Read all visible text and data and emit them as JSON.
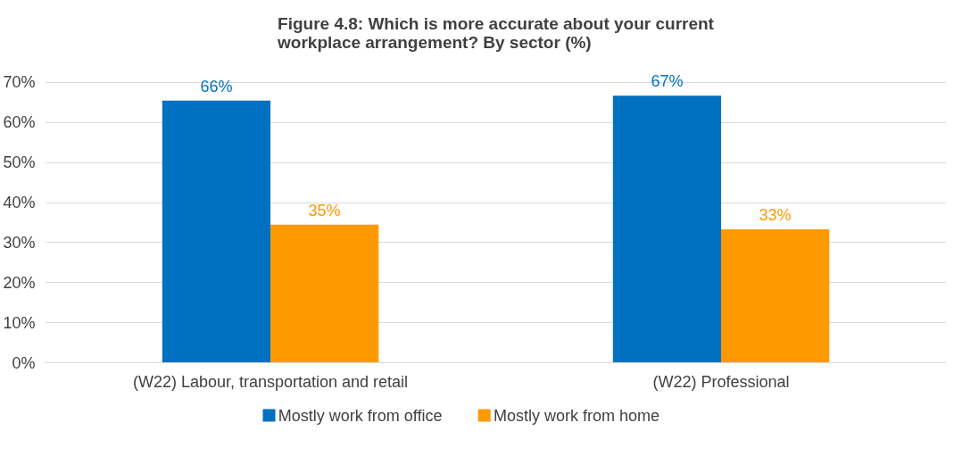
{
  "chart_data": {
    "type": "bar",
    "title": "Figure 4.8: Which is more accurate about your current\nworkplace arrangement? By sector (%)",
    "categories": [
      "(W22) Labour, transportation and retail",
      "(W22) Professional"
    ],
    "series": [
      {
        "name": "Mostly work from office",
        "color": "#0070c0",
        "values": [
          65.5,
          66.7
        ],
        "value_labels": [
          "66%",
          "67%"
        ]
      },
      {
        "name": "Mostly work from home",
        "color": "#ff9900",
        "values": [
          34.5,
          33.3
        ],
        "value_labels": [
          "35%",
          "33%"
        ]
      }
    ],
    "ylim": [
      0,
      70
    ],
    "yticks": [
      {
        "value": 0,
        "label": "0%"
      },
      {
        "value": 10,
        "label": "10%"
      },
      {
        "value": 20,
        "label": "20%"
      },
      {
        "value": 30,
        "label": "30%"
      },
      {
        "value": 40,
        "label": "40%"
      },
      {
        "value": 50,
        "label": "50%"
      },
      {
        "value": 60,
        "label": "60%"
      },
      {
        "value": 70,
        "label": "70%"
      }
    ],
    "grid": "y",
    "legend": "bottom"
  }
}
